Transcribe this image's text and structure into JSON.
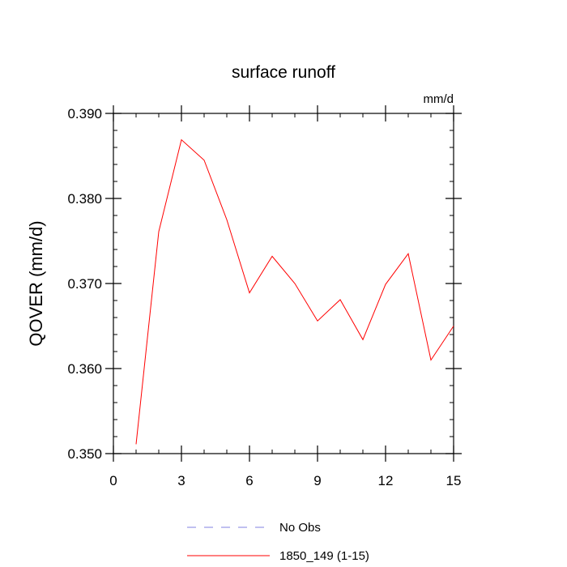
{
  "chart_data": {
    "type": "line",
    "title": "surface runoff",
    "units": "mm/d",
    "ylabel": "QOVER  (mm/d)",
    "xlabel": "",
    "xlim": [
      0,
      15
    ],
    "ylim": [
      0.35,
      0.39
    ],
    "x_ticks": [
      0,
      3,
      6,
      9,
      12,
      15
    ],
    "x_tick_labels": [
      "0",
      "3",
      "6",
      "9",
      "12",
      "15"
    ],
    "y_ticks": [
      0.35,
      0.36,
      0.37,
      0.38,
      0.39
    ],
    "y_tick_labels": [
      "0.350",
      "0.360",
      "0.370",
      "0.380",
      "0.390"
    ],
    "x_minor_step": 1,
    "y_minor_step": 0.002,
    "grid": false,
    "legend_position": "bottom",
    "series": [
      {
        "name": "No Obs",
        "color": "#8080e0",
        "dash": "dashed",
        "x": [],
        "values": []
      },
      {
        "name": "1850_149 (1-15)",
        "color": "#ff0000",
        "dash": "solid",
        "x": [
          1,
          2,
          3,
          4,
          5,
          6,
          7,
          8,
          9,
          10,
          11,
          12,
          13,
          14,
          15
        ],
        "values": [
          0.3511,
          0.3761,
          0.3869,
          0.3845,
          0.3775,
          0.3689,
          0.3732,
          0.37,
          0.3656,
          0.3681,
          0.3634,
          0.3699,
          0.3735,
          0.361,
          0.365
        ]
      }
    ]
  }
}
